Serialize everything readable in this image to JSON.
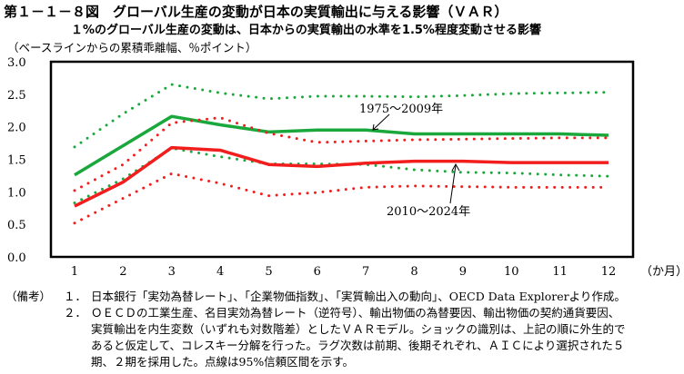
{
  "title": "第１－１－８図　グローバル生産の変動が日本の実質輸出に与える影響（ＶＡＲ）",
  "subtitle": "１%のグローバル生産の変動は、日本からの実質輸出の水準を1.5%程度変動させる影響",
  "chart_data": {
    "type": "line",
    "title": "第１－１－８図　グローバル生産の変動が日本の実質輸出に与える影響（ＶＡＲ）",
    "ylabel": "（ベースラインからの累積乖離幅、％ポイント）",
    "xlabel": "（か月）",
    "ylim": [
      0,
      3
    ],
    "yticks": [
      "0.0",
      "0.5",
      "1.0",
      "1.5",
      "2.0",
      "2.5",
      "3.0"
    ],
    "categories": [
      "1",
      "2",
      "3",
      "4",
      "5",
      "6",
      "7",
      "8",
      "9",
      "10",
      "11",
      "12"
    ],
    "series": [
      {
        "name": "1975～2009年",
        "style": "solid",
        "color": "#1aa83c",
        "values": [
          1.26,
          1.71,
          2.16,
          2.03,
          1.92,
          1.95,
          1.95,
          1.89,
          1.89,
          1.89,
          1.89,
          1.87
        ]
      },
      {
        "name": "1975～2009年 上限",
        "style": "dotted",
        "color": "#1aa83c",
        "values": [
          1.69,
          2.2,
          2.65,
          2.52,
          2.43,
          2.47,
          2.47,
          2.46,
          2.48,
          2.51,
          2.52,
          2.53
        ]
      },
      {
        "name": "1975～2009年 下限",
        "style": "dotted",
        "color": "#1aa83c",
        "values": [
          0.83,
          1.2,
          1.67,
          1.54,
          1.43,
          1.43,
          1.42,
          1.34,
          1.3,
          1.29,
          1.26,
          1.24
        ]
      },
      {
        "name": "2010～2024年",
        "style": "solid",
        "color": "#f21d1d",
        "values": [
          0.78,
          1.15,
          1.68,
          1.64,
          1.42,
          1.39,
          1.44,
          1.47,
          1.47,
          1.45,
          1.45,
          1.45
        ]
      },
      {
        "name": "2010～2024年 上限",
        "style": "dotted",
        "color": "#f21d1d",
        "values": [
          1.02,
          1.42,
          2.06,
          2.14,
          1.9,
          1.76,
          1.78,
          1.8,
          1.81,
          1.82,
          1.83,
          1.83
        ]
      },
      {
        "name": "2010～2024年 下限",
        "style": "dotted",
        "color": "#f21d1d",
        "values": [
          0.52,
          0.9,
          1.28,
          1.13,
          0.94,
          0.99,
          1.07,
          1.09,
          1.08,
          1.07,
          1.07,
          1.07
        ]
      }
    ],
    "annotations": [
      "1975～2009年",
      "2010～2024年"
    ],
    "grid": false
  },
  "notes": {
    "label": "（備考）",
    "items": [
      {
        "num": "１．",
        "lines": [
          "日本銀行「実効為替レート」、「企業物価指数」、「実質輸出入の動向」、OECD Data Explorerより作成。"
        ]
      },
      {
        "num": "２．",
        "lines": [
          "ＯＥＣＤの工業生産、名目実効為替レート（逆符号）、輸出物価の為替要因、輸出物価の契約通貨要因、",
          "実質輸出を内生変数（いずれも対数階差）としたＶＡＲモデル。ショックの識別は、上記の順に外生的で",
          "あると仮定して、コレスキー分解を行った。ラグ次数は前期、後期それぞれ、ＡＩＣにより選択された５",
          "期、２期を採用した。点線は95%信頼区間を示す。"
        ]
      }
    ]
  }
}
